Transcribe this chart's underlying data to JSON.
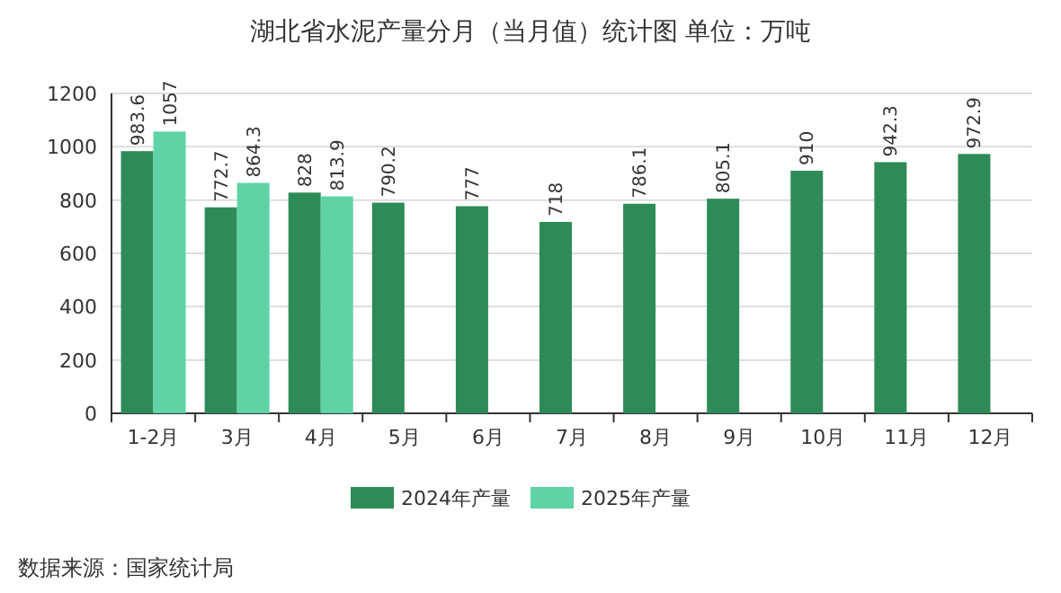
{
  "chart_data": {
    "type": "bar",
    "title": "湖北省水泥产量分月（当月值）统计图 单位：万吨",
    "categories": [
      "1-2月",
      "3月",
      "4月",
      "5月",
      "6月",
      "7月",
      "8月",
      "9月",
      "10月",
      "11月",
      "12月"
    ],
    "series": [
      {
        "name": "2024年产量",
        "color": "#2e8b57",
        "values": [
          983.6,
          772.7,
          828,
          790.2,
          777,
          718,
          786.1,
          805.1,
          910,
          942.3,
          972.9
        ]
      },
      {
        "name": "2025年产量",
        "color": "#5fd3a5",
        "values": [
          1057,
          864.3,
          813.9,
          null,
          null,
          null,
          null,
          null,
          null,
          null,
          null
        ]
      }
    ],
    "ylim": [
      0,
      1200
    ],
    "yticks": [
      0,
      200,
      400,
      600,
      800,
      1000,
      1200
    ],
    "grid": "y",
    "legend": "bottom",
    "data_labels": true,
    "annotations": [
      "数据来源：国家统计局"
    ]
  }
}
